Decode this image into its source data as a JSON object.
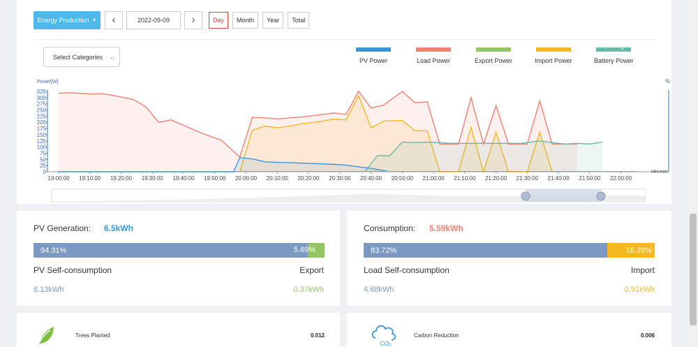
{
  "toolbar": {
    "mode_label": "Energy Production",
    "date": "2022-09-09",
    "periods": [
      "Day",
      "Month",
      "Year",
      "Total"
    ],
    "active_period": "Day"
  },
  "category_select": {
    "placeholder": "Select Categories"
  },
  "legend": [
    {
      "name": "PV Power",
      "color": "#3a97d8"
    },
    {
      "name": "Load Power",
      "color": "#f08173"
    },
    {
      "name": "Export Power",
      "color": "#95c564"
    },
    {
      "name": "Import Power",
      "color": "#f5b821"
    },
    {
      "name": "Battery Power",
      "color": "#6cb8a8"
    }
  ],
  "chart_data": {
    "type": "area",
    "ylabel": "Power[W]",
    "y2label": "%",
    "xlabel": "HH:mm",
    "ylim": [
      0,
      325
    ],
    "yticks": [
      0,
      25,
      50,
      75,
      100,
      125,
      150,
      175,
      200,
      225,
      250,
      275,
      300,
      325
    ],
    "x_ticks": [
      "19:00:00",
      "19:10:00",
      "19:20:00",
      "19:30:00",
      "19:40:00",
      "19:50:00",
      "20:00:00",
      "20:10:00",
      "20:20:00",
      "20:30:00",
      "20:40:00",
      "20:50:00",
      "21:00:00",
      "21:10:00",
      "21:20:00",
      "21:30:00",
      "21:40:00",
      "21:50:00",
      "22:00:00"
    ],
    "series": [
      {
        "name": "Load Power",
        "color": "#f08173",
        "points": [
          [
            "19:00",
            318
          ],
          [
            "19:04",
            320
          ],
          [
            "19:10",
            315
          ],
          [
            "19:14",
            316
          ],
          [
            "19:18",
            308
          ],
          [
            "19:24",
            292
          ],
          [
            "19:28",
            262
          ],
          [
            "19:32",
            200
          ],
          [
            "19:36",
            210
          ],
          [
            "19:40",
            188
          ],
          [
            "19:46",
            155
          ],
          [
            "19:52",
            128
          ],
          [
            "19:58",
            60
          ],
          [
            "20:02",
            220
          ],
          [
            "20:06",
            218
          ],
          [
            "20:10",
            214
          ],
          [
            "20:14",
            218
          ],
          [
            "20:18",
            222
          ],
          [
            "20:22",
            228
          ],
          [
            "20:28",
            238
          ],
          [
            "20:32",
            232
          ],
          [
            "20:36",
            326
          ],
          [
            "20:40",
            258
          ],
          [
            "20:44",
            270
          ],
          [
            "20:50",
            325
          ],
          [
            "20:54",
            280
          ],
          [
            "20:58",
            283
          ],
          [
            "21:02",
            112
          ],
          [
            "21:08",
            112
          ],
          [
            "21:12",
            300
          ],
          [
            "21:16",
            112
          ],
          [
            "21:20",
            268
          ],
          [
            "21:24",
            112
          ],
          [
            "21:30",
            112
          ],
          [
            "21:34",
            287
          ],
          [
            "21:38",
            112
          ],
          [
            "21:42",
            112
          ],
          [
            "21:46",
            112
          ]
        ]
      },
      {
        "name": "Import Power",
        "color": "#f5b821",
        "points": [
          [
            "19:58",
            0
          ],
          [
            "20:02",
            168
          ],
          [
            "20:06",
            185
          ],
          [
            "20:10",
            178
          ],
          [
            "20:14",
            185
          ],
          [
            "20:18",
            195
          ],
          [
            "20:22",
            200
          ],
          [
            "20:28",
            213
          ],
          [
            "20:32",
            210
          ],
          [
            "20:36",
            308
          ],
          [
            "20:40",
            178
          ],
          [
            "20:44",
            205
          ],
          [
            "20:50",
            208
          ],
          [
            "20:54",
            167
          ],
          [
            "20:58",
            165
          ],
          [
            "21:02",
            0
          ],
          [
            "21:08",
            0
          ],
          [
            "21:12",
            180
          ],
          [
            "21:16",
            0
          ],
          [
            "21:20",
            160
          ],
          [
            "21:24",
            0
          ],
          [
            "21:30",
            0
          ],
          [
            "21:34",
            160
          ],
          [
            "21:38",
            0
          ]
        ]
      },
      {
        "name": "Battery Power",
        "color": "#6cb8a8",
        "points": [
          [
            "20:38",
            0
          ],
          [
            "20:42",
            65
          ],
          [
            "20:46",
            65
          ],
          [
            "20:50",
            120
          ],
          [
            "20:54",
            118
          ],
          [
            "20:58",
            120
          ],
          [
            "21:02",
            118
          ],
          [
            "21:06",
            115
          ],
          [
            "21:12",
            115
          ],
          [
            "21:20",
            115
          ],
          [
            "21:28",
            115
          ],
          [
            "21:34",
            125
          ],
          [
            "21:38",
            118
          ],
          [
            "21:42",
            112
          ],
          [
            "21:46",
            115
          ],
          [
            "21:50",
            112
          ],
          [
            "21:54",
            120
          ]
        ]
      },
      {
        "name": "PV Power",
        "color": "#3a97d8",
        "points": [
          [
            "19:00",
            0
          ],
          [
            "19:56",
            0
          ],
          [
            "19:58",
            57
          ],
          [
            "20:02",
            52
          ],
          [
            "20:06",
            40
          ],
          [
            "20:10",
            38
          ],
          [
            "20:14",
            37
          ],
          [
            "20:18",
            35
          ],
          [
            "20:22",
            33
          ],
          [
            "20:28",
            30
          ],
          [
            "20:32",
            27
          ],
          [
            "20:36",
            20
          ],
          [
            "20:40",
            14
          ],
          [
            "20:44",
            5
          ],
          [
            "20:46",
            0
          ]
        ]
      }
    ]
  },
  "pv_card": {
    "title": "PV Generation:",
    "value": "6.5kWh",
    "self_pct": "94.31%",
    "export_pct": "5.69%",
    "self_fraction": 0.9431,
    "self_label": "PV Self-consumption",
    "export_label": "Export",
    "self_value": "6.13kWh",
    "export_value": "0.37kWh"
  },
  "load_card": {
    "title": "Consumption:",
    "value": "5.59kWh",
    "self_pct": "83.72%",
    "import_pct": "16.28%",
    "self_fraction": 0.8372,
    "self_label": "Load Self-consumption",
    "import_label": "Import",
    "self_value": "4.68kWh",
    "import_value": "0.91kWh"
  },
  "env": {
    "trees_label": "Trees Planted",
    "trees_value": "0.012",
    "carbon_label": "Carbon Reduction",
    "carbon_value": "0.006",
    "co2_glyph": "CO₂"
  },
  "colors": {
    "accent": "#4fb8ea",
    "pv_title": "#3a97d8",
    "load_title": "#f08173",
    "self_bar": "#7b99c2",
    "export_bar": "#95c564",
    "import_bar": "#f5b821"
  }
}
